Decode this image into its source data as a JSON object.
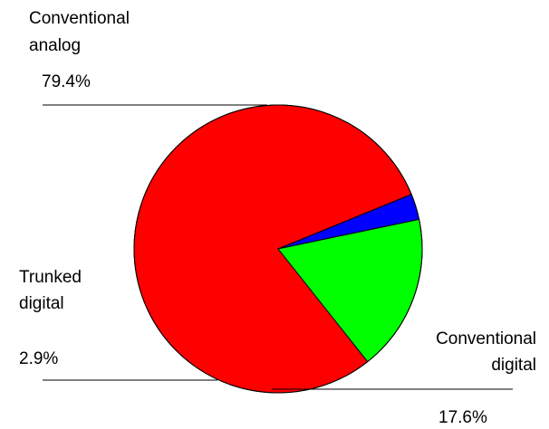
{
  "chart_data": {
    "type": "pie",
    "title": "",
    "slices": [
      {
        "label_line1": "Conventional",
        "label_line2": "analog",
        "value": 79.4,
        "value_label": "79.4%",
        "color": "#ff0000"
      },
      {
        "label_line1": "Trunked",
        "label_line2": "digital",
        "value": 2.9,
        "value_label": "2.9%",
        "color": "#0000ff"
      },
      {
        "label_line1": "Conventional",
        "label_line2": "digital",
        "value": 17.6,
        "value_label": "17.6%",
        "color": "#00ff00"
      }
    ]
  }
}
